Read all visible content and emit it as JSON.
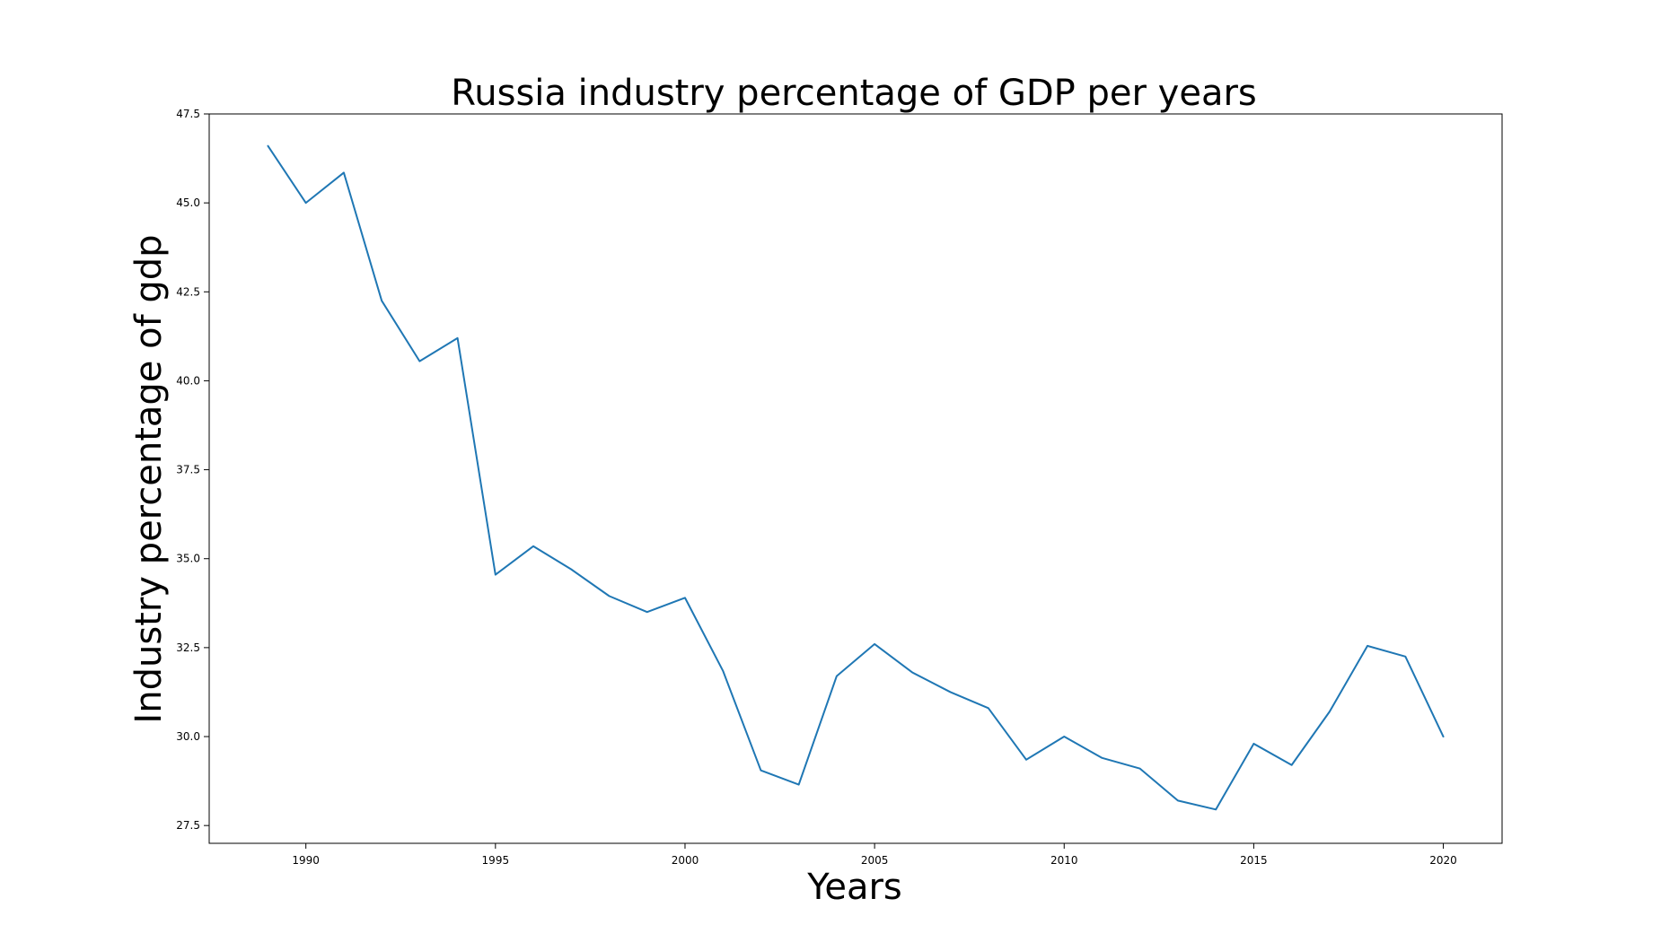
{
  "chart_data": {
    "type": "line",
    "title": "Russia industry percentage of GDP per years",
    "xlabel": "Years",
    "ylabel": "Industry percentage of gdp",
    "xlim": [
      1987.45,
      2021.55
    ],
    "ylim": [
      27.0,
      47.5
    ],
    "x_ticks": [
      1990,
      1995,
      2000,
      2005,
      2010,
      2015,
      2020
    ],
    "y_ticks": [
      27.5,
      30.0,
      32.5,
      35.0,
      37.5,
      40.0,
      42.5,
      45.0,
      47.5
    ],
    "y_tick_labels": [
      "27.5",
      "30.0",
      "32.5",
      "35.0",
      "37.5",
      "40.0",
      "42.5",
      "45.0",
      "47.5"
    ],
    "grid": false,
    "line_color": "#1f77b4",
    "series": [
      {
        "x": [
          1989,
          1990,
          1991,
          1992,
          1993,
          1994,
          1995,
          1996,
          1997,
          1998,
          1999,
          2000,
          2001,
          2002,
          2003,
          2004,
          2005,
          2006,
          2007,
          2008,
          2009,
          2010,
          2011,
          2012,
          2013,
          2014,
          2015,
          2016,
          2017,
          2018,
          2019,
          2020
        ],
        "values": [
          46.6,
          45.0,
          45.85,
          42.25,
          40.55,
          41.2,
          34.55,
          35.35,
          34.7,
          33.95,
          33.5,
          33.9,
          31.85,
          29.05,
          28.65,
          31.7,
          32.6,
          31.8,
          31.25,
          30.8,
          29.35,
          30.0,
          29.4,
          29.1,
          28.2,
          27.95,
          29.8,
          29.2,
          30.7,
          32.55,
          32.25,
          30.0
        ]
      }
    ]
  }
}
